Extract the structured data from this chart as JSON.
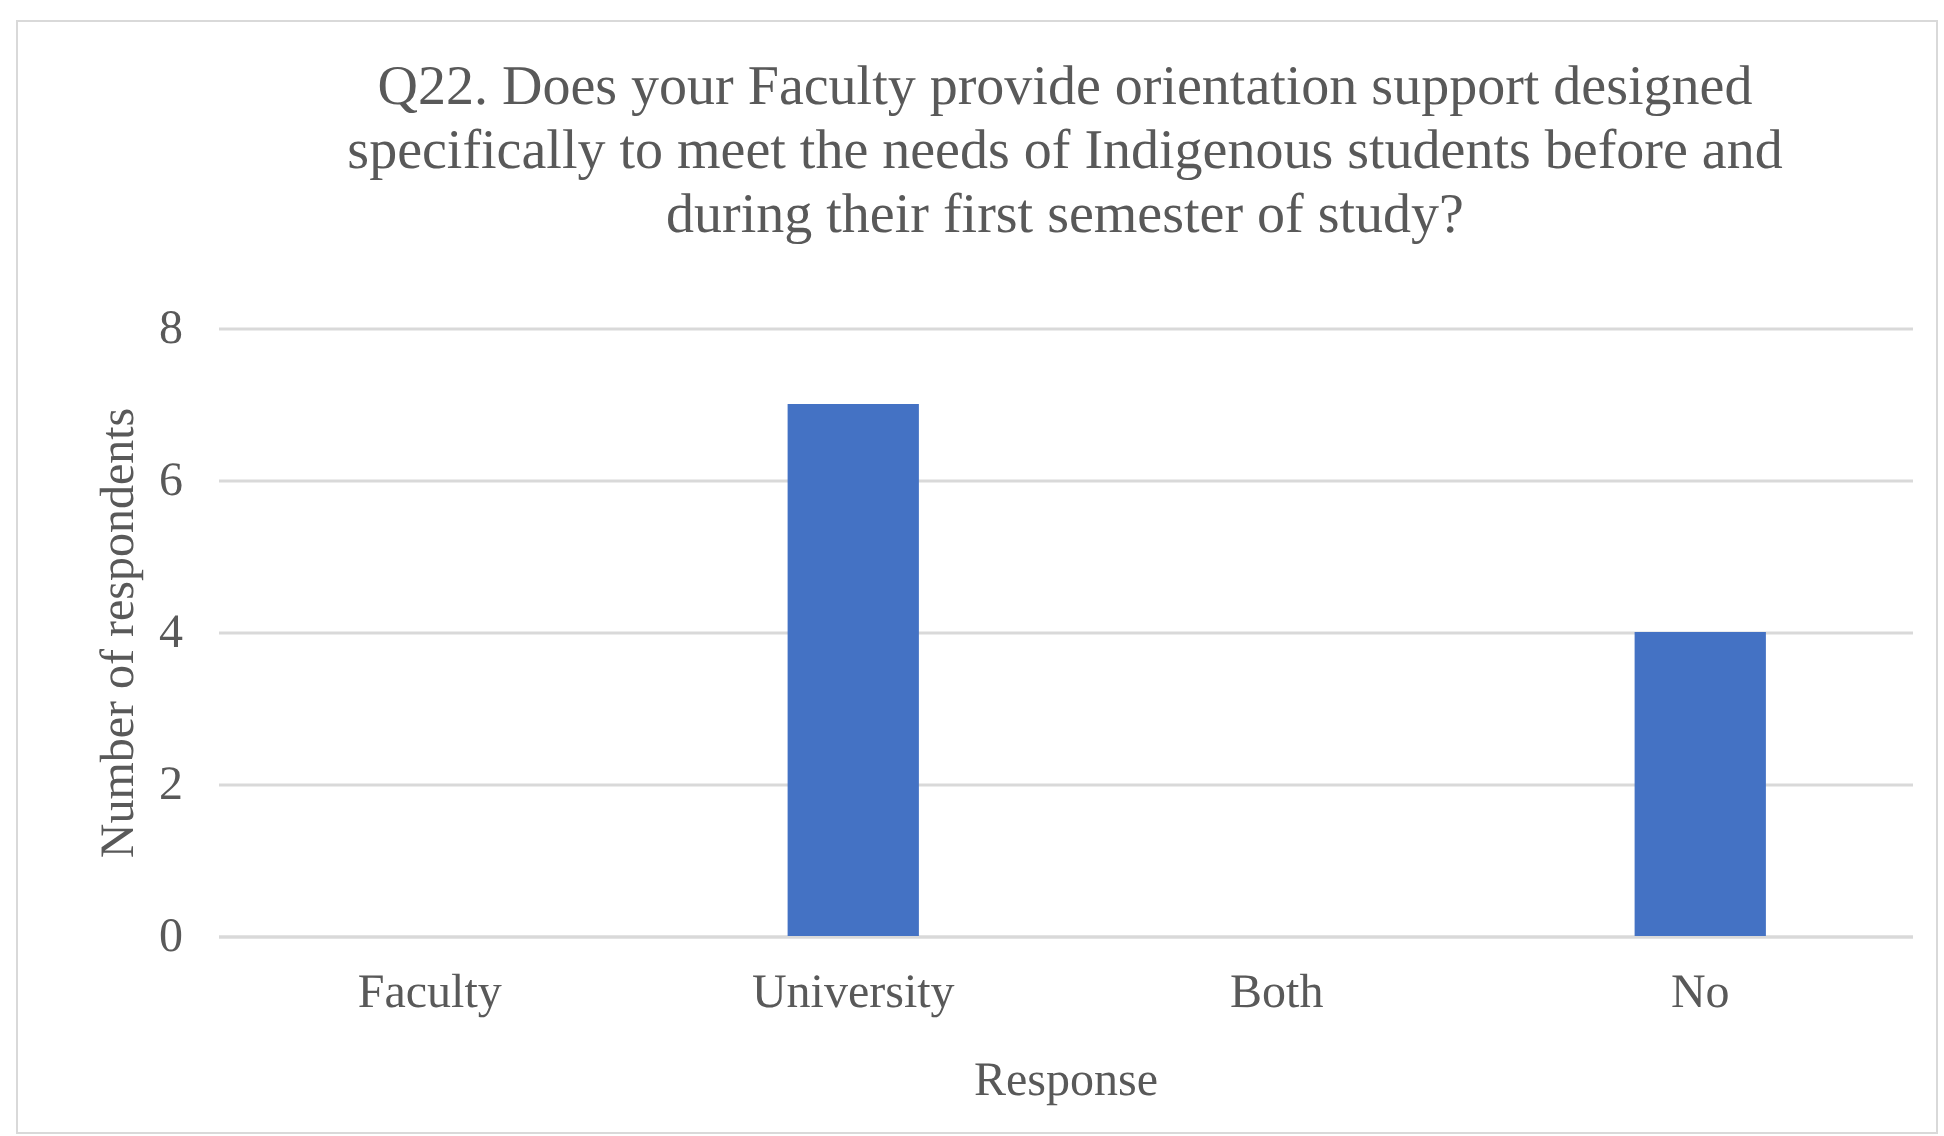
{
  "chart_data": {
    "type": "bar",
    "title": "Q22. Does your Faculty provide orientation support designed specifically to meet the needs of Indigenous students before and during their first semester of study?",
    "xlabel": "Response",
    "ylabel": "Number of respondents",
    "categories": [
      "Faculty",
      "University",
      "Both",
      "No"
    ],
    "values": [
      0,
      7,
      0,
      4
    ],
    "color": "#4472c4",
    "ylim": [
      0,
      8
    ],
    "yticks": [
      0,
      2,
      4,
      6,
      8
    ],
    "grid": "y"
  }
}
